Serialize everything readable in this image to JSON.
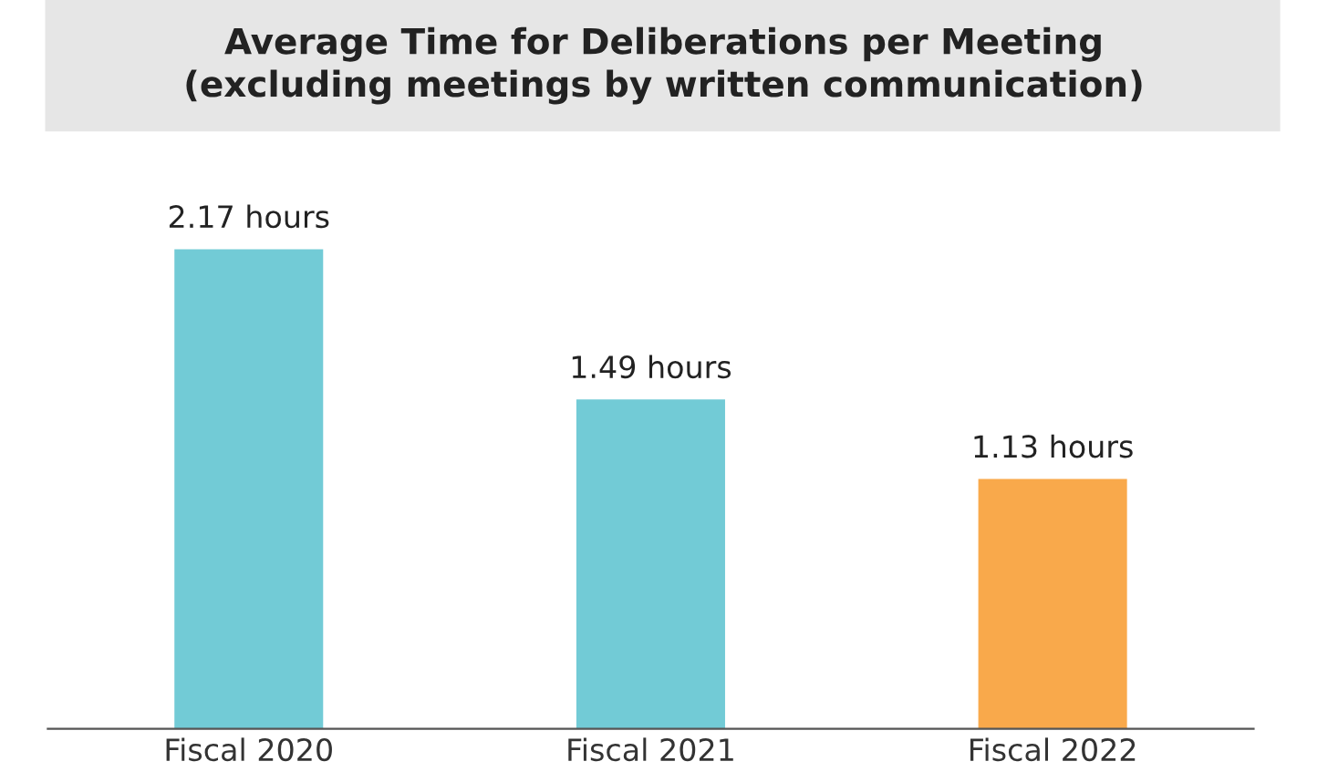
{
  "chart_data": {
    "type": "bar",
    "title": "Average Time for Deliberations per Meeting\n(excluding meetings by written communication)",
    "categories": [
      "Fiscal 2020",
      "Fiscal 2021",
      "Fiscal 2022"
    ],
    "values": [
      2.17,
      1.49,
      1.13
    ],
    "colors": [
      "#72cbd6",
      "#72cbd6",
      "#f9a94b"
    ],
    "value_labels": [
      "2.17 hours",
      "1.49 hours",
      "1.13 hours"
    ],
    "tick_labels": "x",
    "grid": false,
    "legend": false
  }
}
